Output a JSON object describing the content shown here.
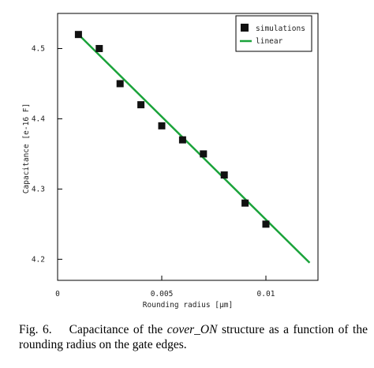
{
  "chart_data": {
    "type": "scatter",
    "xlabel": "Rounding radius [µm]",
    "ylabel": "Capacitance [e-16 F]",
    "xlim": [
      0,
      0.0125
    ],
    "ylim": [
      4.17,
      4.55
    ],
    "xticks": [
      0,
      0.005,
      0.01
    ],
    "xtick_labels": [
      "0",
      "0.005",
      "0.01"
    ],
    "yticks": [
      4.2,
      4.3,
      4.4,
      4.5
    ],
    "ytick_labels": [
      "4.2",
      "4.3",
      "4.4",
      "4.5"
    ],
    "grid": false,
    "legend_placement": "top-right",
    "series": [
      {
        "name": "simulations",
        "kind": "markers",
        "color": "#111111",
        "x": [
          0.001,
          0.002,
          0.003,
          0.004,
          0.005,
          0.006,
          0.007,
          0.008,
          0.009,
          0.01
        ],
        "y": [
          4.52,
          4.5,
          4.45,
          4.42,
          4.39,
          4.37,
          4.35,
          4.32,
          4.28,
          4.25
        ]
      },
      {
        "name": "linear",
        "kind": "line",
        "color": "#1aa33a",
        "x": [
          0.0009,
          0.0121
        ],
        "y": [
          4.523,
          4.195
        ]
      }
    ]
  },
  "caption": {
    "prefix": "Fig. 6.    Capacitance of the ",
    "emphasis": "cover_ON",
    "suffix": " structure as a function of the rounding radius on the gate edges."
  }
}
